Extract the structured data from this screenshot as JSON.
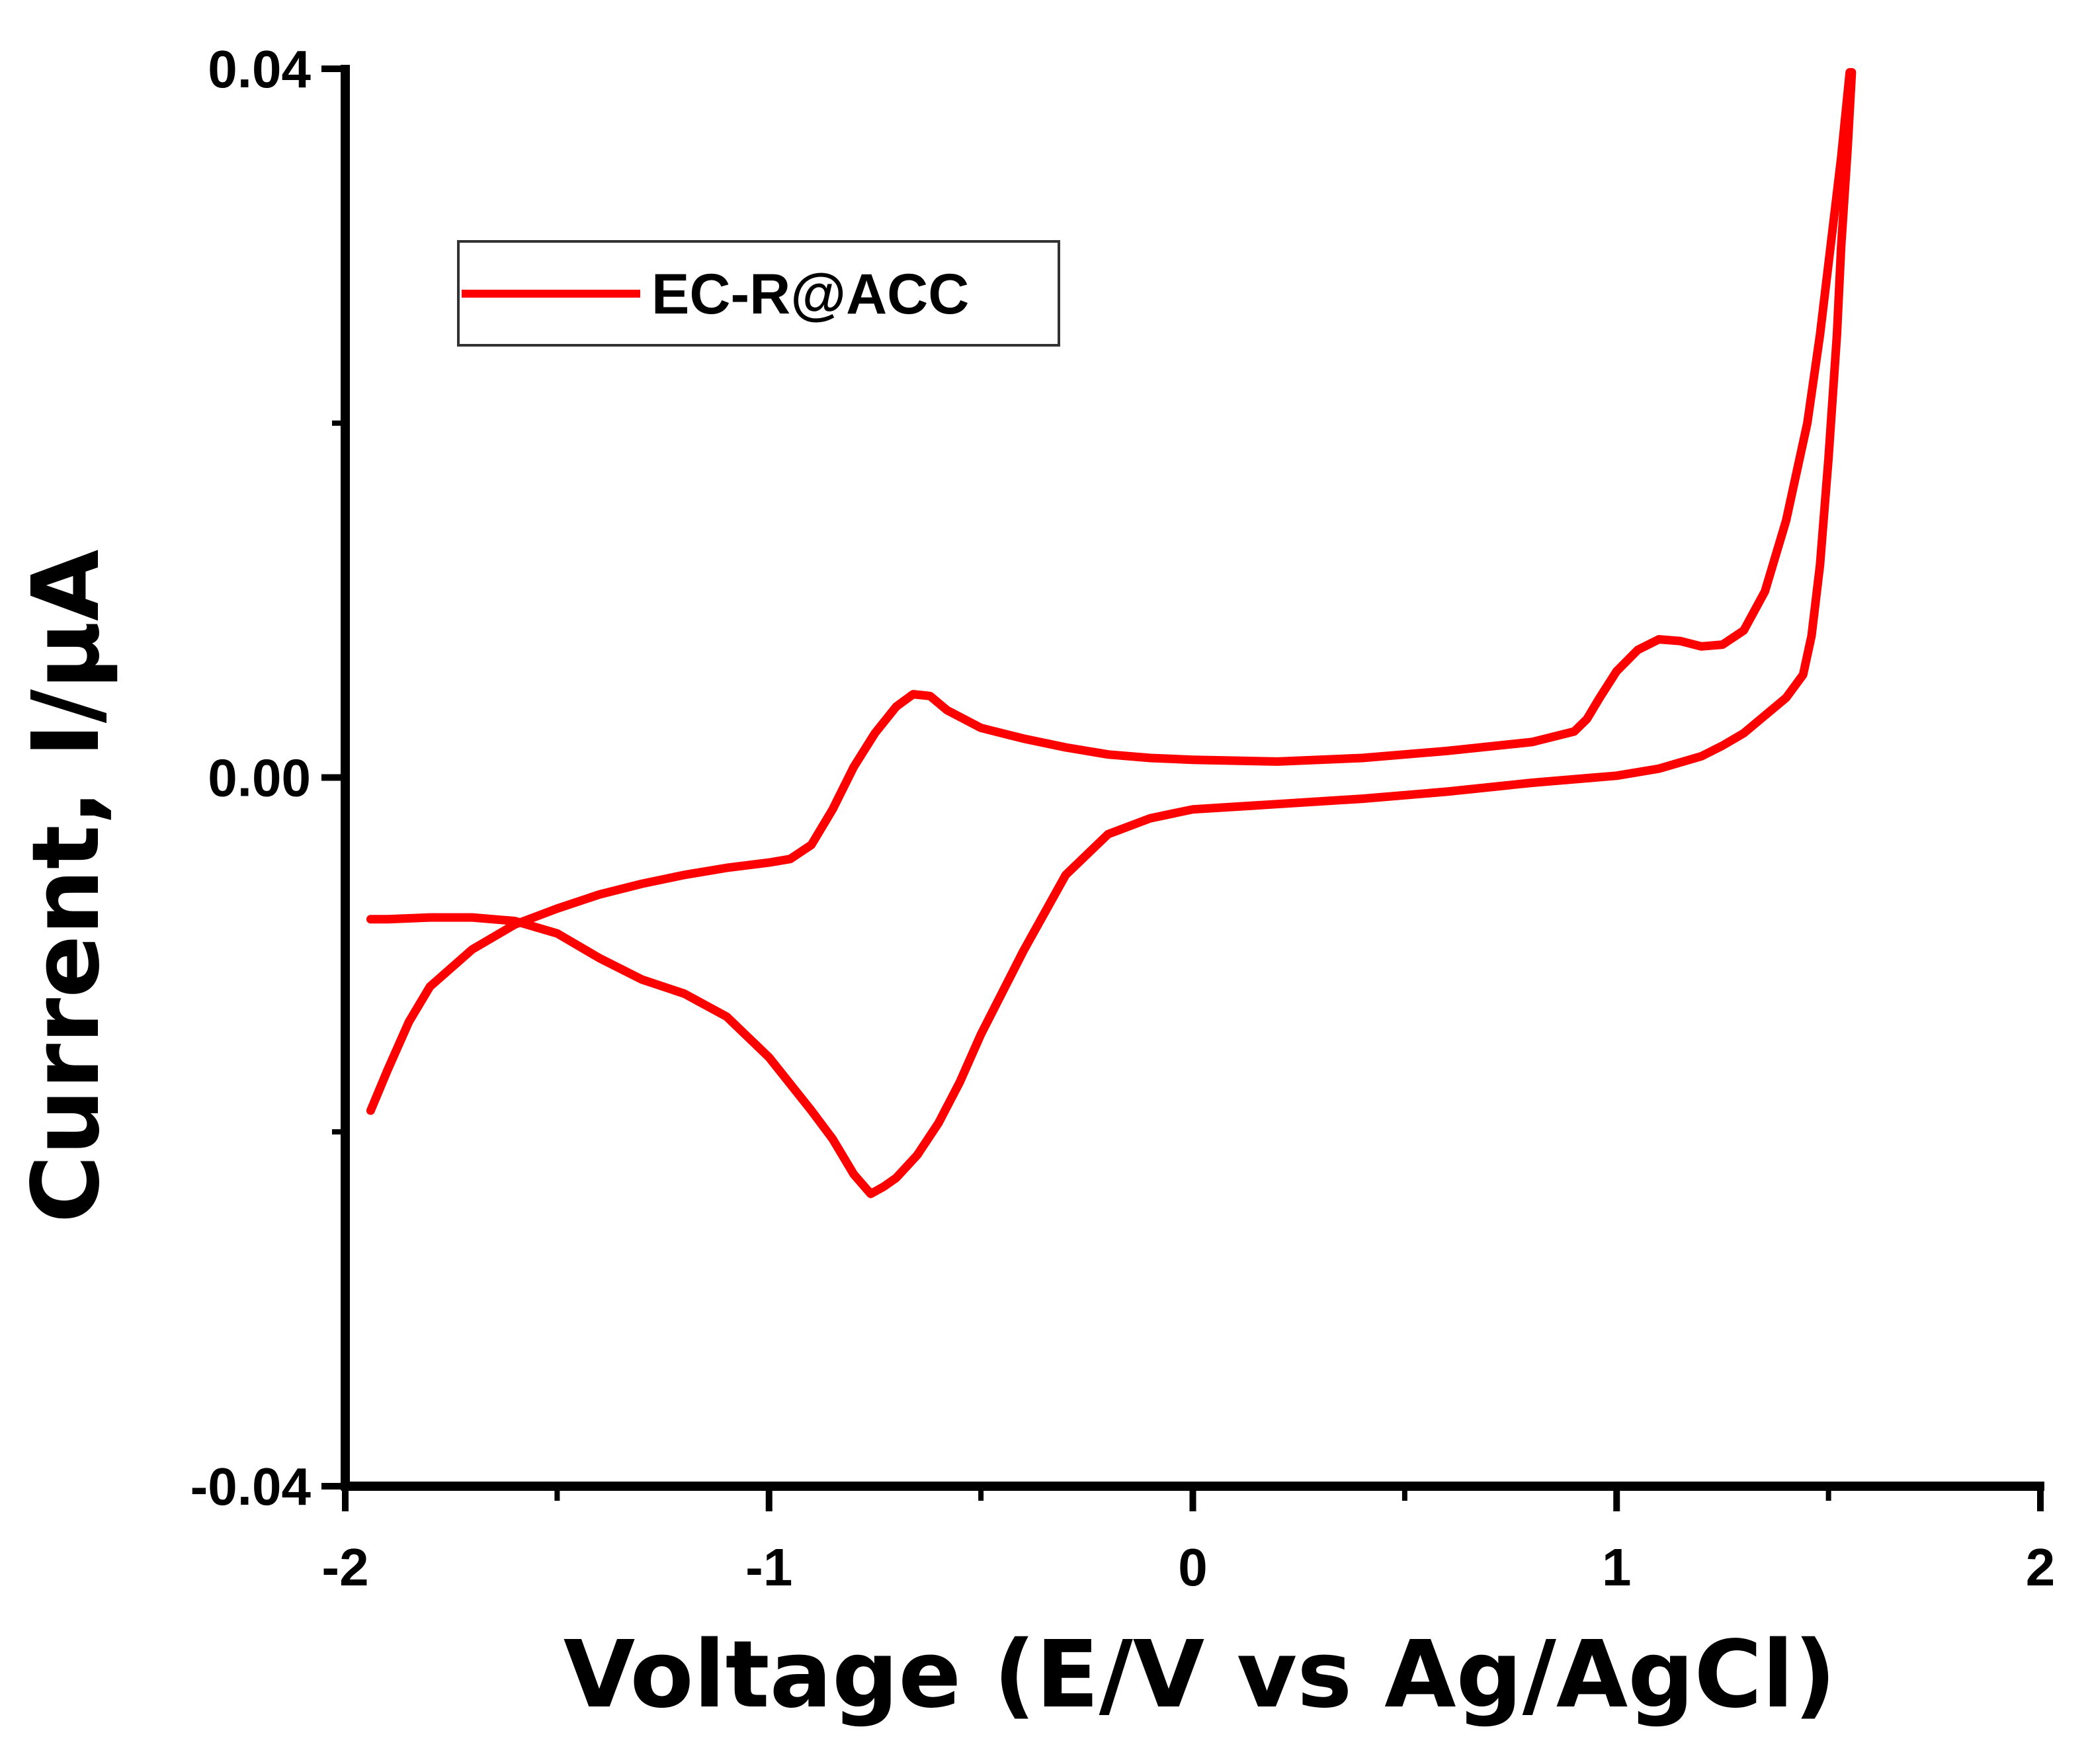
{
  "chart_data": {
    "type": "line",
    "title": "",
    "xlabel": "Voltage (E/V vs Ag/AgCl)",
    "ylabel": "Current, I/µA",
    "xlim": [
      -2,
      2
    ],
    "ylim": [
      -0.04,
      0.04
    ],
    "x_ticks": [
      -2,
      -1,
      0,
      1,
      2
    ],
    "x_tick_labels": [
      "-2",
      "-1",
      "0",
      "1",
      "2"
    ],
    "y_ticks": [
      -0.04,
      0.0,
      0.04
    ],
    "y_tick_labels": [
      "-0.04",
      "0.00",
      "0.04"
    ],
    "x_minor_ticks": [
      -1.5,
      -0.5,
      0.5,
      1.5
    ],
    "y_minor_ticks": [
      -0.02,
      0.02
    ],
    "grid": false,
    "legend_position": "top-left",
    "colors": {
      "series": "#ff0000",
      "axis": "#000000"
    },
    "series": [
      {
        "name": "EC-R@ACC",
        "x": [
          -1.94,
          -1.9,
          -1.85,
          -1.8,
          -1.7,
          -1.6,
          -1.5,
          -1.4,
          -1.3,
          -1.2,
          -1.1,
          -1.0,
          -0.95,
          -0.9,
          -0.85,
          -0.8,
          -0.75,
          -0.7,
          -0.66,
          -0.62,
          -0.58,
          -0.5,
          -0.4,
          -0.3,
          -0.2,
          -0.1,
          0.0,
          0.2,
          0.4,
          0.6,
          0.8,
          0.9,
          0.93,
          0.96,
          1.0,
          1.05,
          1.1,
          1.15,
          1.2,
          1.25,
          1.3,
          1.35,
          1.4,
          1.45,
          1.48,
          1.51,
          1.53,
          1.55,
          1.555,
          1.545,
          1.53,
          1.52,
          1.5,
          1.48,
          1.46,
          1.44,
          1.4,
          1.35,
          1.3,
          1.25,
          1.2,
          1.1,
          1.0,
          0.8,
          0.6,
          0.4,
          0.2,
          0.0,
          -0.1,
          -0.2,
          -0.3,
          -0.4,
          -0.5,
          -0.55,
          -0.6,
          -0.65,
          -0.7,
          -0.73,
          -0.76,
          -0.8,
          -0.85,
          -0.9,
          -1.0,
          -1.1,
          -1.2,
          -1.3,
          -1.4,
          -1.5,
          -1.6,
          -1.7,
          -1.8,
          -1.9,
          -1.94
        ],
        "y": [
          -0.0188,
          -0.0165,
          -0.0138,
          -0.0118,
          -0.0097,
          -0.0083,
          -0.0074,
          -0.0066,
          -0.006,
          -0.0055,
          -0.0051,
          -0.0048,
          -0.0046,
          -0.0038,
          -0.0018,
          0.0006,
          0.0025,
          0.004,
          0.0047,
          0.0046,
          0.0038,
          0.0028,
          0.0022,
          0.0017,
          0.0013,
          0.0011,
          0.001,
          0.0009,
          0.0011,
          0.0015,
          0.002,
          0.0026,
          0.0033,
          0.0045,
          0.006,
          0.0072,
          0.0078,
          0.0077,
          0.0074,
          0.0075,
          0.0083,
          0.0105,
          0.0145,
          0.02,
          0.025,
          0.031,
          0.035,
          0.0398,
          0.0398,
          0.0355,
          0.03,
          0.025,
          0.018,
          0.012,
          0.008,
          0.0058,
          0.0045,
          0.0035,
          0.0025,
          0.0018,
          0.0012,
          0.0005,
          0.0001,
          -0.0003,
          -0.0008,
          -0.0012,
          -0.0015,
          -0.0018,
          -0.0023,
          -0.0032,
          -0.0055,
          -0.0098,
          -0.0145,
          -0.0172,
          -0.0195,
          -0.0213,
          -0.0226,
          -0.0231,
          -0.0235,
          -0.0224,
          -0.0204,
          -0.0188,
          -0.0158,
          -0.0135,
          -0.0122,
          -0.0114,
          -0.0102,
          -0.0088,
          -0.0081,
          -0.0079,
          -0.0079,
          -0.008,
          -0.008
        ]
      }
    ]
  }
}
